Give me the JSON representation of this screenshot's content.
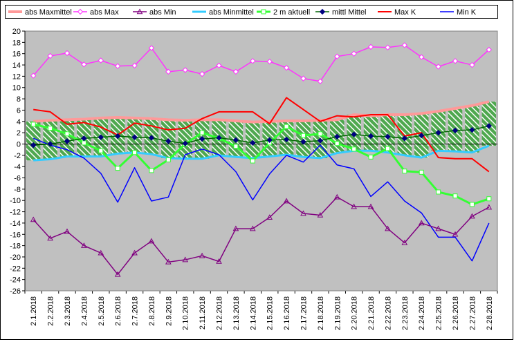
{
  "chart_data": {
    "type": "line",
    "title": "",
    "xlabel": "",
    "ylabel": "",
    "ylim": [
      -26,
      20
    ],
    "ytick_step": 2,
    "grid": false,
    "legend_position": "top",
    "plot_background": "#c0c0c0",
    "categories": [
      "2.1.2018",
      "2.2.2018",
      "2.3.2018",
      "2.4.2018",
      "2.5.2018",
      "2.6.2018",
      "2.7.2018",
      "2.8.2018",
      "2.9.2018",
      "2.10.2018",
      "2.11.2018",
      "2.12.2018",
      "2.13.2018",
      "2.14.2018",
      "2.15.2018",
      "2.16.2018",
      "2.17.2018",
      "2.18.2018",
      "2.19.2018",
      "2.20.2018",
      "2.21.2018",
      "2.22.2018",
      "2.23.2018",
      "2.24.2018",
      "2.25.2018",
      "2.26.2018",
      "2.27.2018",
      "2.28.2018"
    ],
    "band": {
      "fill": "#4fa84f",
      "stripe_color": "#ffffff"
    },
    "series": [
      {
        "name": "abs Maxmittel",
        "color": "#ff9999",
        "width": 4,
        "marker": "none",
        "values": [
          4.0,
          4.2,
          4.3,
          4.4,
          4.6,
          4.7,
          4.6,
          4.5,
          4.3,
          4.2,
          4.3,
          4.3,
          4.1,
          3.9,
          4.0,
          4.1,
          4.1,
          4.2,
          4.3,
          5.2,
          5.0,
          5.2,
          5.2,
          5.4,
          5.8,
          6.3,
          6.8,
          7.5
        ]
      },
      {
        "name": "abs Max",
        "color": "#ff33ff",
        "width": 1.5,
        "marker": "diamond-open",
        "values": [
          12.1,
          15.6,
          16.1,
          14.1,
          14.8,
          13.8,
          13.9,
          17.0,
          12.8,
          13.1,
          12.4,
          13.9,
          12.8,
          14.7,
          14.6,
          13.5,
          11.6,
          11.1,
          15.5,
          16.0,
          17.2,
          17.1,
          17.5,
          15.4,
          13.7,
          14.7,
          14.0,
          16.7
        ]
      },
      {
        "name": "abs Min",
        "color": "#800080",
        "width": 1.5,
        "marker": "triangle-open",
        "values": [
          -13.4,
          -16.7,
          -15.5,
          -18.0,
          -19.3,
          -23.1,
          -19.3,
          -17.2,
          -20.9,
          -20.5,
          -19.8,
          -20.8,
          -15.0,
          -15.0,
          -13.0,
          -10.1,
          -12.3,
          -12.6,
          -9.4,
          -11.1,
          -11.1,
          -15.0,
          -17.5,
          -14.0,
          -15.0,
          -16.0,
          -12.8,
          -11.2
        ]
      },
      {
        "name": "abs Minmittel",
        "color": "#33ccff",
        "width": 3,
        "marker": "none",
        "values": [
          -2.9,
          -2.7,
          -2.2,
          -2.2,
          -2.2,
          -1.7,
          -1.5,
          -1.8,
          -2.5,
          -2.6,
          -2.6,
          -2.0,
          -2.3,
          -2.5,
          -2.2,
          -1.9,
          -2.3,
          -2.5,
          -1.6,
          -1.2,
          -1.2,
          -1.5,
          -2.0,
          -2.4,
          -1.2,
          -1.3,
          -1.5,
          -0.3
        ]
      },
      {
        "name": "2 m aktuell",
        "color": "#33ff33",
        "width": 3,
        "marker": "square-open",
        "values": [
          3.5,
          2.8,
          1.8,
          0.2,
          -1.2,
          -4.3,
          -1.5,
          -4.7,
          -2.8,
          0.0,
          2.0,
          1.0,
          -0.4,
          -3.0,
          0.2,
          3.1,
          1.5,
          1.8,
          0.1,
          -0.9,
          -2.3,
          -0.8,
          -4.8,
          -5.0,
          -8.5,
          -9.2,
          -10.7,
          -9.7
        ]
      },
      {
        "name": "mittl Mittel",
        "color": "#006600",
        "width": 1.5,
        "marker": "diamond-filled",
        "marker_color": "#000080",
        "values": [
          -0.2,
          0.0,
          0.5,
          1.0,
          1.2,
          1.4,
          1.2,
          1.1,
          0.5,
          0.1,
          0.9,
          1.1,
          0.7,
          0.2,
          0.7,
          0.8,
          0.4,
          0.6,
          1.3,
          1.7,
          1.4,
          1.3,
          1.0,
          1.5,
          2.0,
          2.4,
          2.5,
          3.2
        ]
      },
      {
        "name": "Max K",
        "color": "#ff0000",
        "width": 2,
        "marker": "none",
        "values": [
          6.1,
          5.7,
          3.5,
          3.8,
          3.0,
          1.6,
          3.7,
          3.2,
          2.5,
          2.8,
          4.5,
          5.7,
          5.7,
          5.7,
          3.6,
          8.2,
          6.1,
          4.0,
          5.0,
          4.8,
          5.2,
          5.2,
          1.4,
          2.0,
          -2.4,
          -2.6,
          -2.6,
          -4.9
        ]
      },
      {
        "name": "Min K",
        "color": "#0000ff",
        "width": 1.5,
        "marker": "none",
        "values": [
          1.0,
          -0.2,
          -1.0,
          -2.5,
          -5.2,
          -10.3,
          -4.2,
          -10.1,
          -9.4,
          -1.9,
          -0.9,
          -1.9,
          -4.9,
          -9.9,
          -5.3,
          -2.0,
          -3.2,
          -0.2,
          -3.7,
          -4.4,
          -9.3,
          -6.7,
          -10.1,
          -12.2,
          -16.5,
          -16.5,
          -20.7,
          -14.0
        ]
      }
    ]
  }
}
